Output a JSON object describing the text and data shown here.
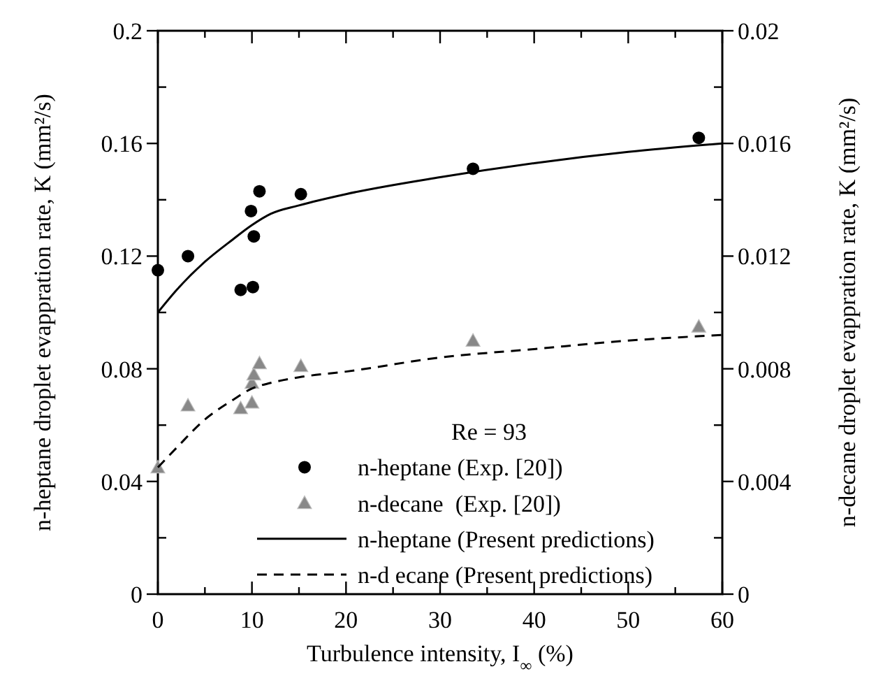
{
  "chart_data": {
    "type": "scatter",
    "xlabel": "Turbulence intensity, I$_{∞}$ (%)",
    "ylabel": "n-heptane droplet evappration rate, K (mm²/s)",
    "y2label": "n-decane droplet evappration rate, K (mm²/s)",
    "legend_title": "Re = 93",
    "legend": "bottom right",
    "grid": false,
    "xlim": [
      0,
      60
    ],
    "xticks": [
      0,
      {
        "value": 5,
        "label": null
      },
      10,
      {
        "value": 15,
        "label": null
      },
      20,
      {
        "value": 25,
        "label": null
      },
      30,
      {
        "value": 35,
        "label": null
      },
      40,
      {
        "value": 45,
        "label": null
      },
      50,
      {
        "value": 55,
        "label": null
      },
      60
    ],
    "ylim": [
      0,
      0.2
    ],
    "yticks": [
      0,
      {
        "value": 0.02,
        "label": null
      },
      0.04,
      {
        "value": 0.06,
        "label": null
      },
      0.08,
      {
        "value": 0.1,
        "label": null
      },
      0.12,
      {
        "value": 0.14,
        "label": null
      },
      0.16,
      {
        "value": 0.18,
        "label": null
      },
      0.2
    ],
    "y2lim": [
      0,
      0.02
    ],
    "y2ticks": [
      0,
      {
        "value": 0.002,
        "label": null
      },
      0.004,
      {
        "value": 0.006,
        "label": null
      },
      0.008,
      {
        "value": 0.01,
        "label": null
      },
      0.012,
      {
        "value": 0.014,
        "label": null
      },
      0.016,
      {
        "value": 0.018,
        "label": null
      },
      0.02
    ],
    "series": [
      {
        "name": "n-heptane (Exp. [20])",
        "marker": "circle",
        "color": "#000000",
        "x": [
          0,
          3.2,
          8.8,
          9.9,
          10.1,
          10.2,
          10.8,
          15.2,
          33.5,
          57.5
        ],
        "values": [
          0.115,
          0.12,
          0.108,
          0.136,
          0.109,
          0.127,
          0.143,
          0.142,
          0.151,
          0.162
        ]
      },
      {
        "name": "n-decane  (Exp. [20])",
        "marker": "triangle",
        "color": "#888888",
        "axis": "y2",
        "x": [
          0,
          3.2,
          8.8,
          10,
          10,
          10.2,
          10.8,
          15.2,
          33.5,
          57.5
        ],
        "values": [
          0.0045,
          0.0067,
          0.0066,
          0.0068,
          0.0075,
          0.0078,
          0.0082,
          0.0081,
          0.009,
          0.0095
        ]
      },
      {
        "name": "n-heptane (Present predictions)",
        "type": "line",
        "line_style": "solid",
        "marker": "none",
        "color": "#000000",
        "x": [
          0,
          2,
          5,
          8,
          10,
          12,
          15,
          20,
          30,
          40,
          50,
          60
        ],
        "values": [
          0.1,
          0.108,
          0.118,
          0.126,
          0.131,
          0.135,
          0.138,
          0.142,
          0.148,
          0.153,
          0.157,
          0.16
        ]
      },
      {
        "name": "n-d ecane (Present predictions)",
        "type": "line",
        "line_style": "dashed",
        "marker": "none",
        "color": "#000000",
        "axis": "y2",
        "x": [
          0,
          2,
          5,
          8,
          10,
          12,
          15,
          20,
          30,
          40,
          50,
          60
        ],
        "values": [
          0.0045,
          0.0052,
          0.0062,
          0.0069,
          0.0073,
          0.0075,
          0.0077,
          0.0079,
          0.0084,
          0.0087,
          0.009,
          0.0092
        ]
      }
    ]
  }
}
